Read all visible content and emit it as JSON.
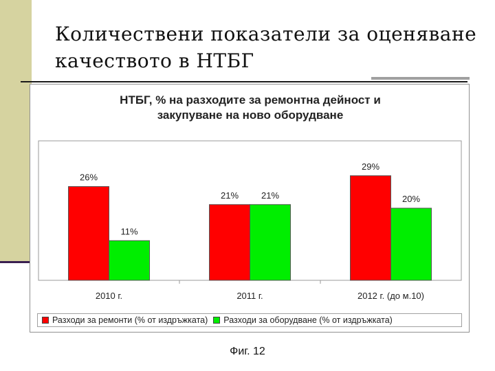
{
  "slide": {
    "title_line1": "Количествени показатели за оценяване",
    "title_line2": "качеството в НТБГ",
    "caption": "Фиг. 12"
  },
  "chart_data": {
    "type": "bar",
    "title_line1": "НТБГ, % на разходите за ремонтна дейност и",
    "title_line2": "закупуване на ново оборудване",
    "categories": [
      "2010 г.",
      "2011 г.",
      "2012 г. (до м.10)"
    ],
    "series": [
      {
        "name": "Разходи за ремонти (% от издръжката)",
        "color": "#ff0000",
        "values": [
          26,
          21,
          29
        ],
        "labels": [
          "26%",
          "21%",
          "29%"
        ]
      },
      {
        "name": "Разходи за оборудване (% от издръжката)",
        "color": "#00ee00",
        "values": [
          11,
          21,
          20
        ],
        "labels": [
          "11%",
          "21%",
          "20%"
        ]
      }
    ],
    "ylim": [
      0,
      40
    ],
    "legend_position": "bottom",
    "grid": false
  }
}
